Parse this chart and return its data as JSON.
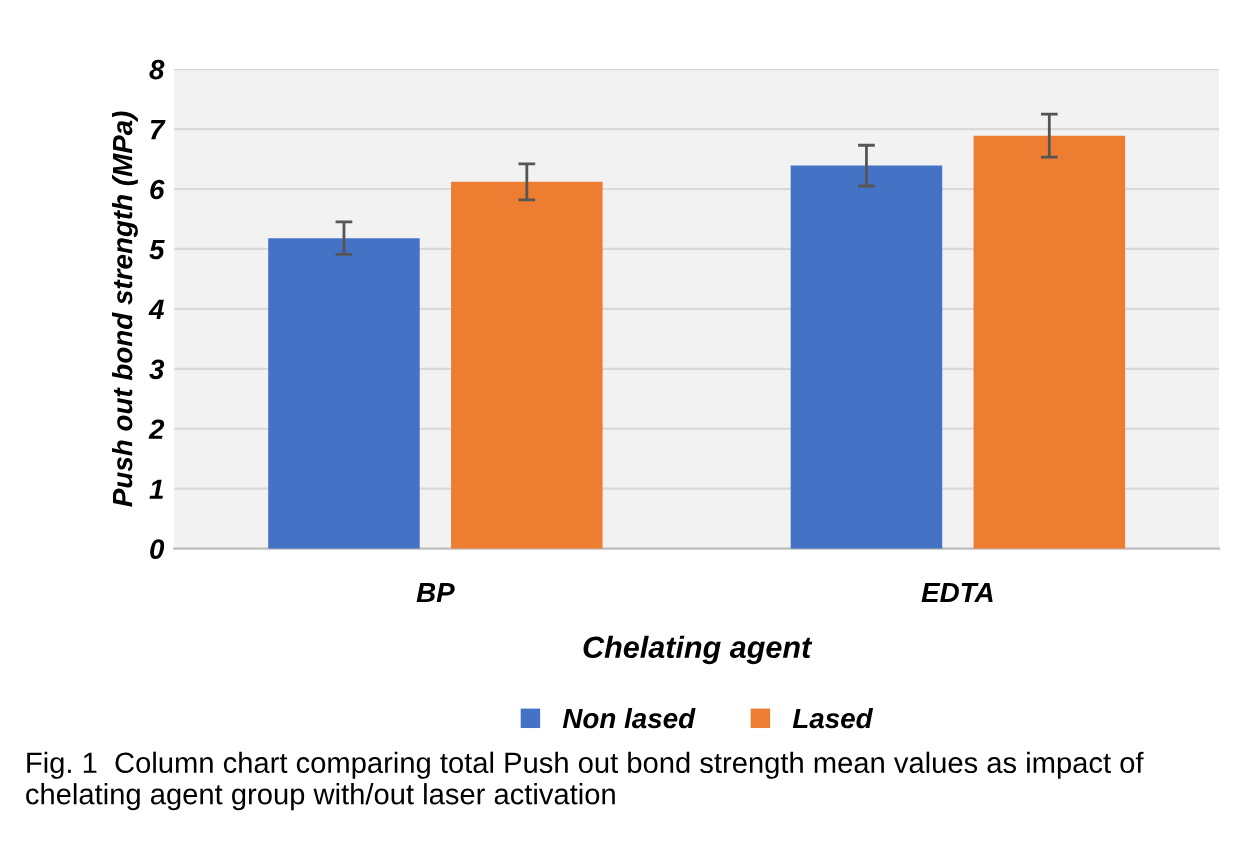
{
  "chart_data": {
    "type": "bar",
    "categories": [
      "BP",
      "EDTA"
    ],
    "xlabel": "Chelating agent",
    "ylabel": "Push out bond strength (MPa)",
    "series": [
      {
        "name": "Non lased",
        "color": "#4472c4",
        "values": [
          5.18,
          6.39
        ],
        "errors": [
          0.27,
          0.34
        ]
      },
      {
        "name": "Lased",
        "color": "#ed7d31",
        "values": [
          6.12,
          6.89
        ],
        "errors": [
          0.3,
          0.36
        ]
      }
    ],
    "ylim": [
      0,
      8
    ],
    "yticks": [
      0,
      1,
      2,
      3,
      4,
      5,
      6,
      7,
      8
    ],
    "grid": "y",
    "legend": "bottom",
    "annotations": [
      "Fig. 1  Column chart comparing total Push out bond strength mean values as impact of chelating agent group with/out laser activation"
    ]
  }
}
